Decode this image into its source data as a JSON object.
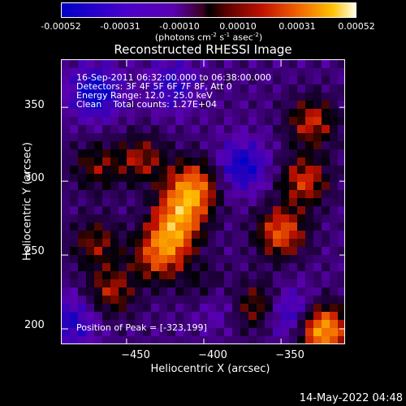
{
  "colorbar": {
    "ticks": [
      "-0.00052",
      "-0.00031",
      "-0.00010",
      "0.00010",
      "0.00031",
      "0.00052"
    ],
    "unit_prefix": "(photons cm",
    "unit_exp1": "-2",
    "unit_mid": " s",
    "unit_exp2": "-1",
    "unit_mid2": " asec",
    "unit_exp3": "-2",
    "unit_suffix": ")"
  },
  "title": "Reconstructed RHESSI Image",
  "info": {
    "line1": "16-Sep-2011 06:32:00.000 to 06:38:00.000",
    "line2": "Detectors: 3F 4F 5F 6F 7F 8F, Att 0",
    "line3": "Energy Range: 12.0 - 25.0 keV",
    "line4": "Clean    Total counts: 1.27E+04"
  },
  "peak": "Position of Peak = [-323,199]",
  "footer_date": "14-May-2022 04:48",
  "chart_data": {
    "type": "heatmap",
    "title": "Reconstructed RHESSI Image",
    "xlabel": "Heliocentric X (arcsec)",
    "ylabel": "Heliocentric Y (arcsec)",
    "xlim": [
      -492,
      -308
    ],
    "ylim": [
      189,
      382
    ],
    "x_ticks": [
      -450,
      -400,
      -350
    ],
    "x_tick_labels": [
      "−450",
      "−400",
      "−350"
    ],
    "y_ticks": [
      350,
      300,
      250,
      200
    ],
    "y_tick_labels": [
      "350",
      "300",
      "250",
      "200"
    ],
    "colorbar_range": [
      -0.00052,
      0.00052
    ],
    "peak_position": [
      -323,
      199
    ],
    "colormap": [
      "#0000c8",
      "#5a00b0",
      "#000000",
      "#c01000",
      "#f06000",
      "#ffc000",
      "#ffffe8"
    ],
    "grid": false,
    "bright_regions": [
      {
        "x": -420,
        "y": 265,
        "value": 0.00038
      },
      {
        "x": -412,
        "y": 285,
        "value": 0.00036
      },
      {
        "x": -430,
        "y": 248,
        "value": 0.0003
      },
      {
        "x": -398,
        "y": 225,
        "value": 0.00032
      },
      {
        "x": -405,
        "y": 300,
        "value": 0.00028
      },
      {
        "x": -460,
        "y": 225,
        "value": 0.00025
      },
      {
        "x": -470,
        "y": 258,
        "value": 0.00022
      },
      {
        "x": -350,
        "y": 265,
        "value": 0.00036
      },
      {
        "x": -335,
        "y": 300,
        "value": 0.0003
      },
      {
        "x": -330,
        "y": 340,
        "value": 0.00028
      },
      {
        "x": -323,
        "y": 199,
        "value": 0.00052
      },
      {
        "x": -365,
        "y": 215,
        "value": 0.00026
      },
      {
        "x": -440,
        "y": 315,
        "value": 0.00024
      },
      {
        "x": -470,
        "y": 310,
        "value": 0.0002
      }
    ],
    "dim_regions": [
      {
        "x": -470,
        "y": 360,
        "value": -0.00031
      },
      {
        "x": -375,
        "y": 310,
        "value": -0.00028
      },
      {
        "x": -395,
        "y": 220,
        "value": -0.0003
      },
      {
        "x": -345,
        "y": 210,
        "value": -0.00026
      },
      {
        "x": -485,
        "y": 205,
        "value": -0.00022
      },
      {
        "x": -420,
        "y": 365,
        "value": -0.0002
      }
    ]
  }
}
